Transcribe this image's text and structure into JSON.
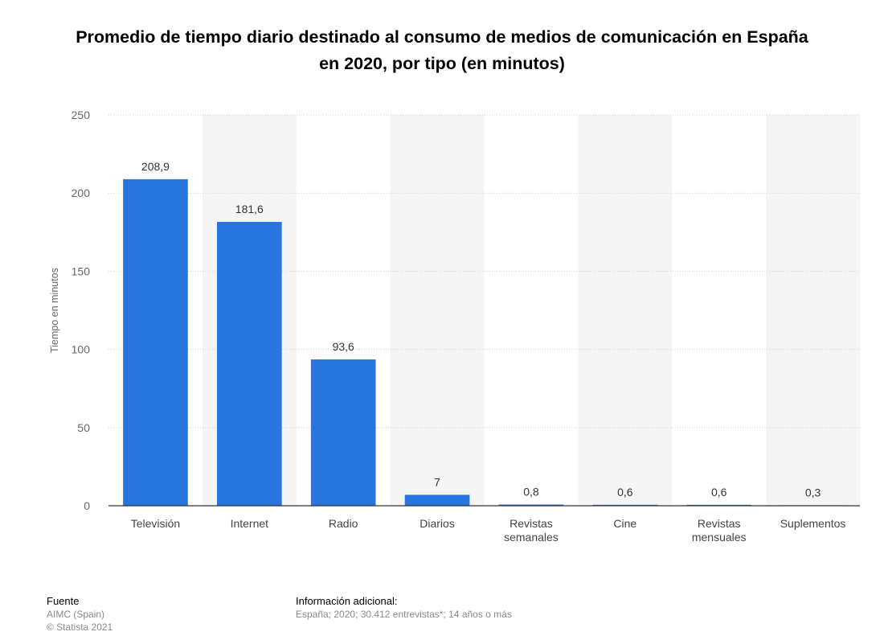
{
  "chart_data": {
    "type": "bar",
    "title": "Promedio de tiempo diario destinado al consumo de medios de comunicación en España en 2020, por tipo (en minutos)",
    "xlabel": "",
    "ylabel": "Tiempo en minutos",
    "categories": [
      "Televisión",
      "Internet",
      "Radio",
      "Diarios",
      "Revistas semanales",
      "Cine",
      "Revistas mensuales",
      "Suplementos"
    ],
    "values": [
      208.9,
      181.6,
      93.6,
      7,
      0.8,
      0.6,
      0.6,
      0.3
    ],
    "value_labels": [
      "208,9",
      "181,6",
      "93,6",
      "7",
      "0,8",
      "0,6",
      "0,6",
      "0,3"
    ],
    "ylim": [
      0,
      250
    ],
    "yticks": [
      0,
      50,
      100,
      150,
      200,
      250
    ],
    "grid": true,
    "bar_color": "#2876dd"
  },
  "footer": {
    "source_heading": "Fuente",
    "source_lines": [
      "AIMC (Spain)",
      "© Statista 2021"
    ],
    "info_heading": "Información adicional:",
    "info_text": "España; 2020; 30.412 entrevistas*; 14 años o más"
  }
}
